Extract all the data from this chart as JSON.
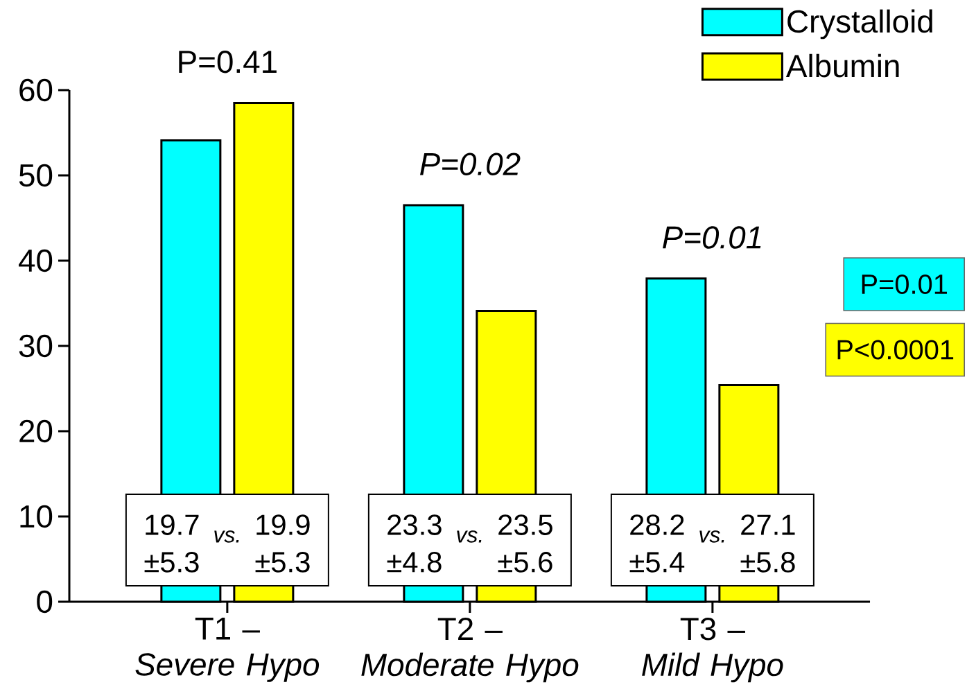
{
  "chart_data": {
    "type": "bar",
    "categories": [
      "T1 – *Severe Hypo*",
      "T2 – *Moderate Hypo*",
      "T3 – *Mild Hypo*"
    ],
    "series": [
      {
        "name": "Crystalloid",
        "color": "#00ffff",
        "values": [
          54.1,
          46.5,
          37.9
        ]
      },
      {
        "name": "Albumin",
        "color": "#ffff00",
        "values": [
          58.5,
          34.1,
          25.4
        ]
      }
    ],
    "ylim": [
      0,
      60
    ],
    "yticks": [
      0,
      10,
      20,
      30,
      40,
      50,
      60
    ],
    "legend": "top right",
    "annotations": [
      "P=0.41",
      "P=0.02",
      "P=0.01",
      "19.7 ±5.3",
      "vs.",
      "19.9 ±5.3",
      "23.3 ±4.8",
      "vs.",
      "23.5 ±5.6",
      "28.2 ±5.4",
      "vs.",
      "27.1 ±5.8",
      "P=0.01",
      "P<0.0001"
    ]
  }
}
